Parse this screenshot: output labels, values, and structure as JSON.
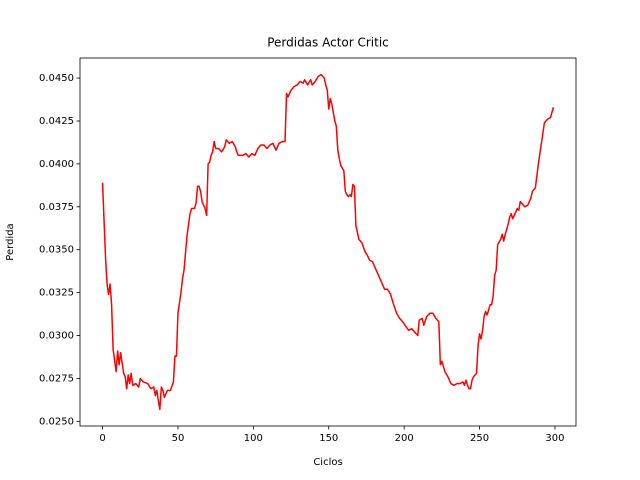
{
  "chart_data": {
    "type": "line",
    "title": "Perdidas Actor Critic",
    "x_label": "Ciclos",
    "y_label": "Perdida",
    "xlim": [
      -14.95,
      313.95
    ],
    "ylim": [
      0.02473,
      0.04617
    ],
    "xticks": [
      0,
      50,
      100,
      150,
      200,
      250,
      300
    ],
    "yticks": [
      {
        "value": 0.025,
        "label": "0.0250"
      },
      {
        "value": 0.0275,
        "label": "0.0275"
      },
      {
        "value": 0.03,
        "label": "0.0300"
      },
      {
        "value": 0.0325,
        "label": "0.0325"
      },
      {
        "value": 0.035,
        "label": "0.0350"
      },
      {
        "value": 0.0375,
        "label": "0.0375"
      },
      {
        "value": 0.04,
        "label": "0.0400"
      },
      {
        "value": 0.0425,
        "label": "0.0425"
      },
      {
        "value": 0.045,
        "label": "0.0450"
      }
    ],
    "grid": false,
    "series": [
      {
        "color": "#ff0000",
        "x": [
          0,
          2,
          3,
          4,
          5,
          6,
          7,
          9,
          10,
          11,
          12,
          14,
          15,
          16,
          17,
          18,
          19,
          20,
          22,
          24,
          25,
          27,
          30,
          32,
          34,
          35,
          36,
          37,
          38,
          39,
          40,
          41,
          43,
          45,
          47,
          48,
          49,
          50,
          52,
          53,
          54,
          56,
          58,
          59,
          61,
          62,
          63,
          64,
          65,
          66,
          68,
          69,
          70,
          71,
          72,
          73,
          74,
          75,
          77,
          79,
          81,
          82,
          84,
          86,
          88,
          89,
          90,
          93,
          95,
          97,
          99,
          101,
          103,
          105,
          107,
          109,
          111,
          113,
          115,
          117,
          119,
          121,
          122,
          123,
          125,
          127,
          129,
          131,
          133,
          134,
          136,
          138,
          139,
          141,
          143,
          145,
          147,
          148,
          149,
          150,
          151,
          152,
          154,
          155,
          156,
          157,
          158,
          160,
          161,
          162,
          163,
          164,
          165,
          166,
          167,
          168,
          169,
          170,
          172,
          174,
          176,
          177,
          179,
          181,
          183,
          185,
          187,
          189,
          191,
          193,
          195,
          197,
          199,
          203,
          205,
          207,
          209,
          210,
          212,
          213,
          215,
          217,
          219,
          221,
          223,
          224,
          225,
          227,
          229,
          231,
          233,
          235,
          237,
          239,
          240,
          241,
          242,
          243,
          244,
          245,
          246,
          247,
          248,
          249,
          250,
          251,
          252,
          253,
          254,
          255,
          257,
          258,
          259,
          260,
          261,
          262,
          264,
          265,
          266,
          267,
          269,
          270,
          271,
          272,
          273,
          275,
          276,
          277,
          278,
          280,
          282,
          284,
          285,
          287,
          289,
          291,
          293,
          295,
          297,
          299
        ],
        "values": [
          0.0389,
          0.0345,
          0.033,
          0.0324,
          0.033,
          0.0318,
          0.0292,
          0.0279,
          0.0291,
          0.0283,
          0.029,
          0.0278,
          0.0276,
          0.0269,
          0.0277,
          0.0272,
          0.0278,
          0.0271,
          0.0272,
          0.027,
          0.0275,
          0.0273,
          0.0272,
          0.0269,
          0.027,
          0.0265,
          0.0268,
          0.0262,
          0.0257,
          0.027,
          0.0268,
          0.0264,
          0.0268,
          0.0268,
          0.0273,
          0.0288,
          0.0288,
          0.0313,
          0.0325,
          0.0333,
          0.0338,
          0.0358,
          0.0371,
          0.0374,
          0.0374,
          0.0377,
          0.0387,
          0.0387,
          0.0384,
          0.0378,
          0.0374,
          0.037,
          0.04,
          0.0401,
          0.0405,
          0.0407,
          0.0413,
          0.0409,
          0.0409,
          0.0407,
          0.041,
          0.0414,
          0.0412,
          0.0413,
          0.041,
          0.0407,
          0.0405,
          0.0405,
          0.0406,
          0.0404,
          0.0406,
          0.0405,
          0.0409,
          0.0411,
          0.0411,
          0.0409,
          0.0411,
          0.0412,
          0.0408,
          0.0412,
          0.0413,
          0.0413,
          0.0441,
          0.0439,
          0.0443,
          0.0445,
          0.0446,
          0.0448,
          0.0447,
          0.0449,
          0.0446,
          0.0449,
          0.0446,
          0.0448,
          0.0451,
          0.0452,
          0.045,
          0.0446,
          0.0443,
          0.0432,
          0.0438,
          0.0435,
          0.0425,
          0.0422,
          0.0408,
          0.0403,
          0.0399,
          0.0396,
          0.0384,
          0.0382,
          0.0381,
          0.0382,
          0.0381,
          0.0388,
          0.0387,
          0.0364,
          0.036,
          0.0356,
          0.0354,
          0.0349,
          0.0346,
          0.0344,
          0.0343,
          0.0339,
          0.0335,
          0.0331,
          0.0327,
          0.0327,
          0.0324,
          0.0318,
          0.0313,
          0.031,
          0.0308,
          0.0303,
          0.0304,
          0.0302,
          0.03,
          0.0309,
          0.031,
          0.0306,
          0.0311,
          0.0313,
          0.0313,
          0.031,
          0.0308,
          0.0283,
          0.0285,
          0.0279,
          0.0276,
          0.0272,
          0.0271,
          0.0272,
          0.0272,
          0.0273,
          0.0271,
          0.0274,
          0.0271,
          0.0269,
          0.0269,
          0.0274,
          0.0276,
          0.0277,
          0.0278,
          0.0294,
          0.0301,
          0.0298,
          0.0303,
          0.0311,
          0.0314,
          0.0312,
          0.0318,
          0.0318,
          0.0323,
          0.0335,
          0.0338,
          0.0353,
          0.0356,
          0.0359,
          0.0355,
          0.0359,
          0.0365,
          0.0369,
          0.0371,
          0.0368,
          0.037,
          0.0374,
          0.0373,
          0.0378,
          0.0377,
          0.0375,
          0.0376,
          0.038,
          0.0384,
          0.0386,
          0.04,
          0.0412,
          0.0424,
          0.0426,
          0.0427,
          0.0433
        ]
      }
    ]
  }
}
